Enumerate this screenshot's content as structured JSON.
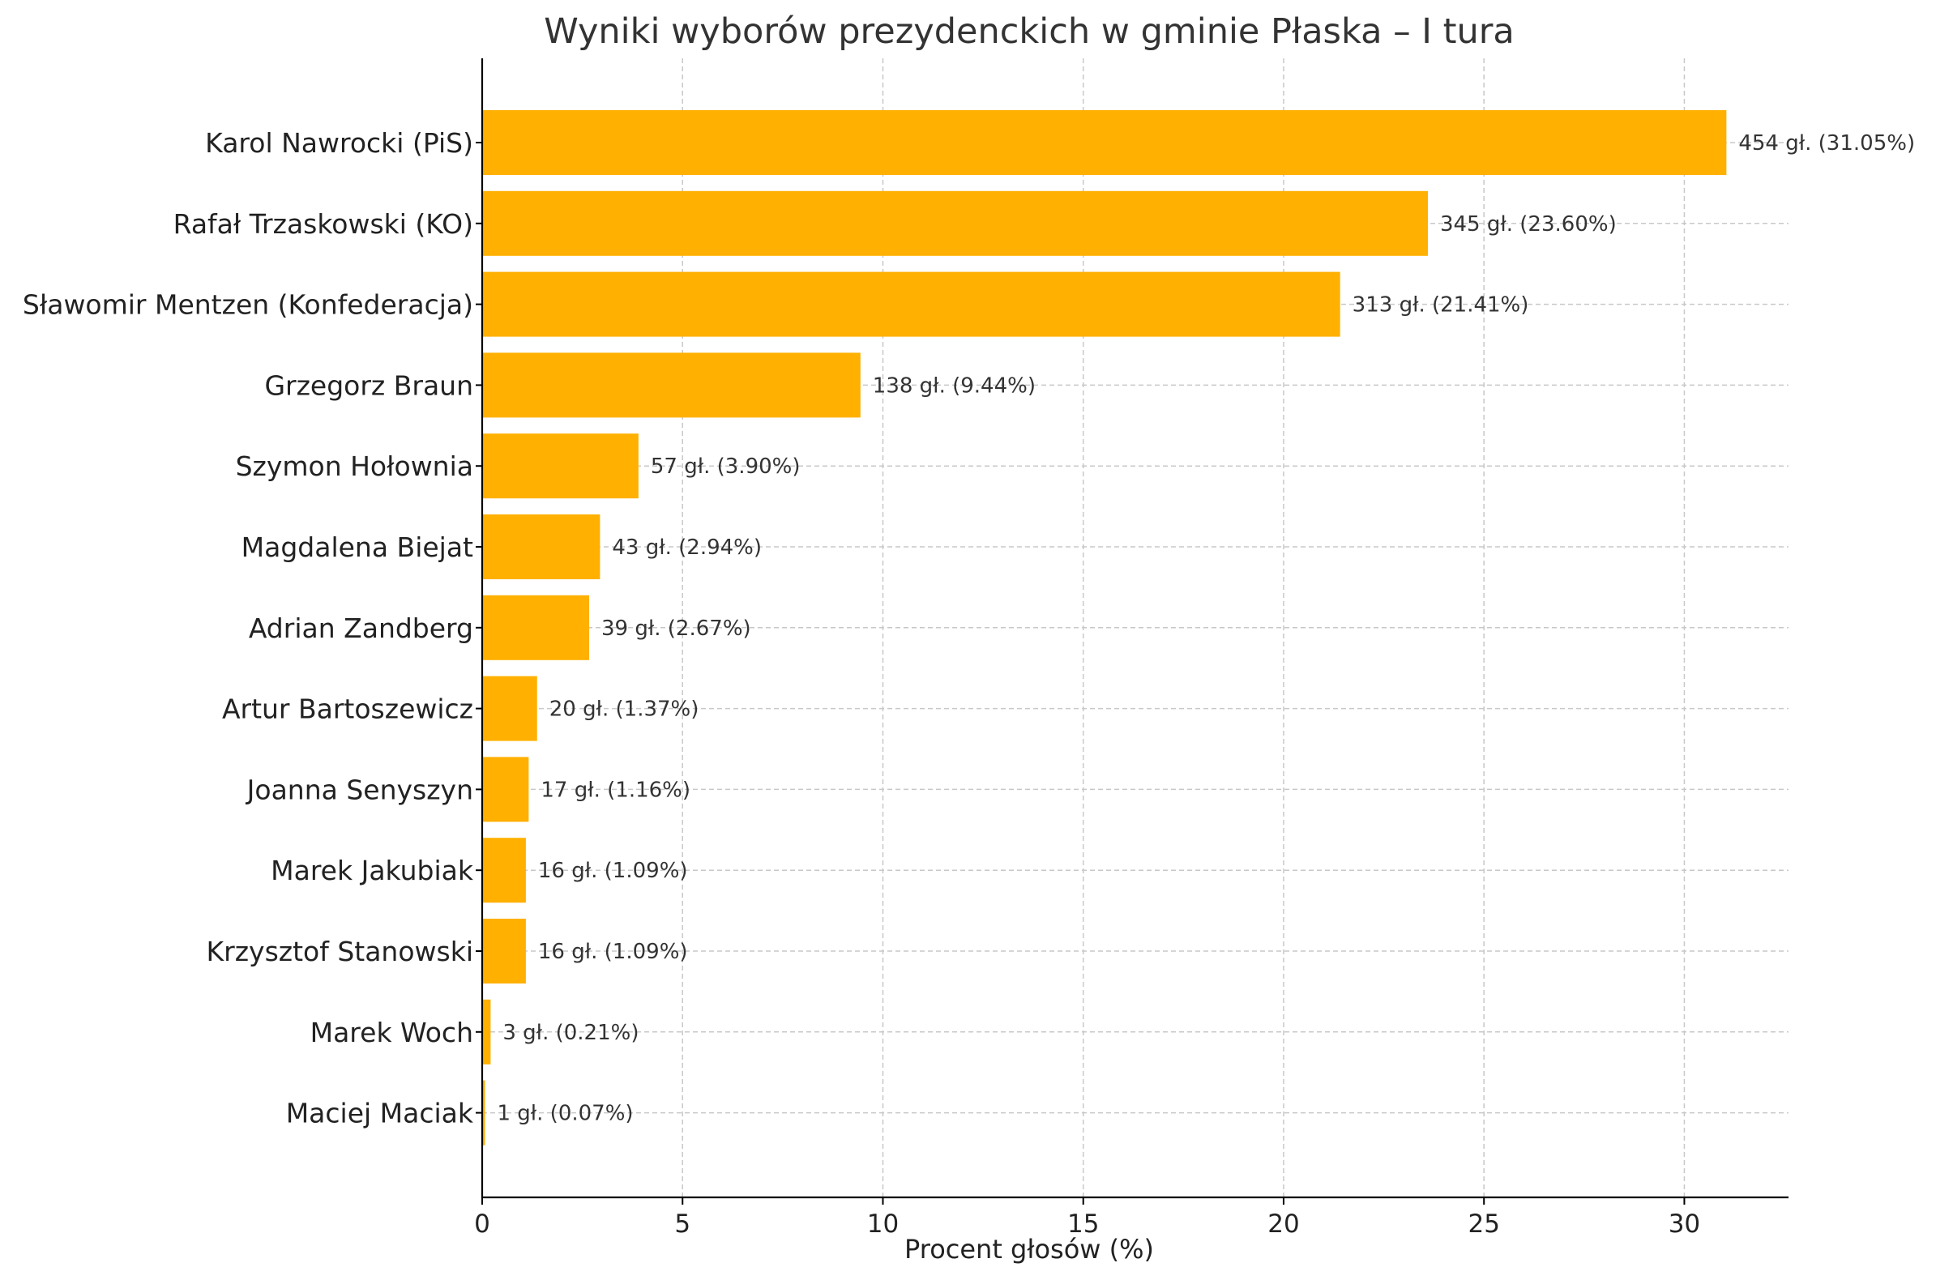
{
  "chart_data": {
    "type": "bar",
    "orientation": "horizontal",
    "title": "Wyniki wyborów prezydenckich w gminie Płaska – I tura",
    "xlabel": "Procent głosów (%)",
    "ylabel": "",
    "xlim": [
      0,
      32.6
    ],
    "xticks": [
      0,
      5,
      10,
      15,
      20,
      25,
      30
    ],
    "grid": true,
    "bar_color": "#FFB000",
    "categories": [
      "Karol Nawrocki (PiS)",
      "Rafał Trzaskowski (KO)",
      "Sławomir Mentzen (Konfederacja)",
      "Grzegorz Braun",
      "Szymon Hołownia",
      "Magdalena Biejat",
      "Adrian Zandberg",
      "Artur Bartoszewicz",
      "Joanna Senyszyn",
      "Marek Jakubiak",
      "Krzysztof Stanowski",
      "Marek Woch",
      "Maciej Maciak"
    ],
    "values": [
      31.05,
      23.6,
      21.41,
      9.44,
      3.9,
      2.94,
      2.67,
      1.37,
      1.16,
      1.09,
      1.09,
      0.21,
      0.07
    ],
    "data_labels": [
      "454 gł. (31.05%)",
      "345 gł. (23.60%)",
      "313 gł. (21.41%)",
      "138 gł. (9.44%)",
      "57 gł. (3.90%)",
      "43 gł. (2.94%)",
      "39 gł. (2.67%)",
      "20 gł. (1.37%)",
      "17 gł. (1.16%)",
      "16 gł. (1.09%)",
      "16 gł. (1.09%)",
      "3 gł. (0.21%)",
      "1 gł. (0.07%)"
    ]
  }
}
